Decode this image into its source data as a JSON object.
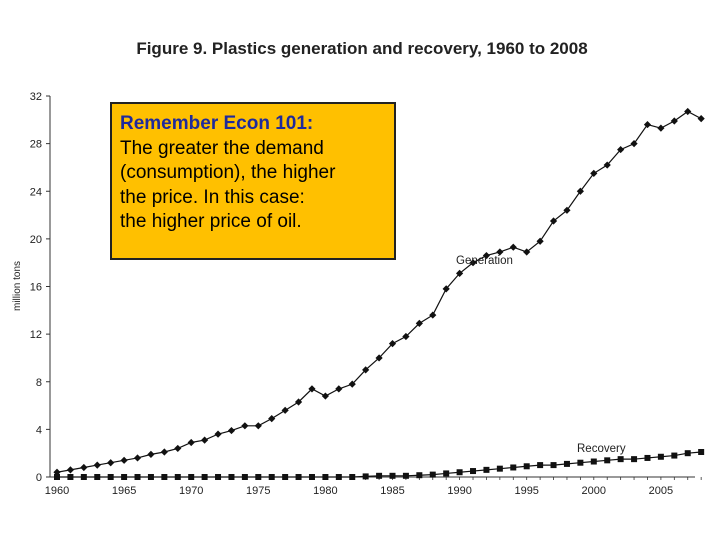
{
  "chart_data": {
    "type": "line",
    "title": "Figure 9. Plastics generation and recovery, 1960 to 2008",
    "ylabel": "million tons",
    "xlabel": "",
    "xlim": [
      1960,
      2008
    ],
    "ylim": [
      0,
      32
    ],
    "x_ticks": [
      1960,
      1965,
      1970,
      1975,
      1980,
      1985,
      1990,
      1995,
      2000,
      2005
    ],
    "y_ticks": [
      0,
      4,
      8,
      12,
      16,
      20,
      24,
      28,
      32
    ],
    "grid": false,
    "x": [
      1960,
      1961,
      1962,
      1963,
      1964,
      1965,
      1966,
      1967,
      1968,
      1969,
      1970,
      1971,
      1972,
      1973,
      1974,
      1975,
      1976,
      1977,
      1978,
      1979,
      1980,
      1981,
      1982,
      1983,
      1984,
      1985,
      1986,
      1987,
      1988,
      1989,
      1990,
      1991,
      1992,
      1993,
      1994,
      1995,
      1996,
      1997,
      1998,
      1999,
      2000,
      2001,
      2002,
      2003,
      2004,
      2005,
      2006,
      2007,
      2008
    ],
    "series": [
      {
        "name": "Generation",
        "marker": "diamond",
        "values": [
          0.4,
          0.6,
          0.8,
          1.0,
          1.2,
          1.4,
          1.6,
          1.9,
          2.1,
          2.4,
          2.9,
          3.1,
          3.6,
          3.9,
          4.3,
          4.3,
          4.9,
          5.6,
          6.3,
          7.4,
          6.8,
          7.4,
          7.8,
          9.0,
          10.0,
          11.2,
          11.8,
          12.9,
          13.6,
          15.8,
          17.1,
          18.0,
          18.6,
          18.9,
          19.3,
          18.9,
          19.8,
          21.5,
          22.4,
          24.0,
          25.5,
          26.2,
          27.5,
          28.0,
          29.6,
          29.3,
          29.9,
          30.7,
          30.1
        ],
        "color": "#111111"
      },
      {
        "name": "Recovery",
        "marker": "square",
        "values": [
          0.0,
          0.0,
          0.0,
          0.0,
          0.0,
          0.0,
          0.0,
          0.0,
          0.0,
          0.0,
          0.0,
          0.0,
          0.0,
          0.0,
          0.0,
          0.0,
          0.0,
          0.0,
          0.0,
          0.0,
          0.0,
          0.0,
          0.0,
          0.05,
          0.1,
          0.1,
          0.1,
          0.15,
          0.2,
          0.3,
          0.4,
          0.5,
          0.6,
          0.7,
          0.8,
          0.9,
          1.0,
          1.0,
          1.1,
          1.2,
          1.3,
          1.4,
          1.5,
          1.5,
          1.6,
          1.7,
          1.8,
          2.0,
          2.1
        ],
        "color": "#111111"
      }
    ]
  },
  "callout": {
    "title": "Remember Econ 101:",
    "body": "The greater the demand\n(consumption), the higher\nthe price. In this case:\nthe higher price of oil."
  },
  "colors": {
    "callout_bg": "#ffc000",
    "callout_title": "#1f2a9c"
  }
}
